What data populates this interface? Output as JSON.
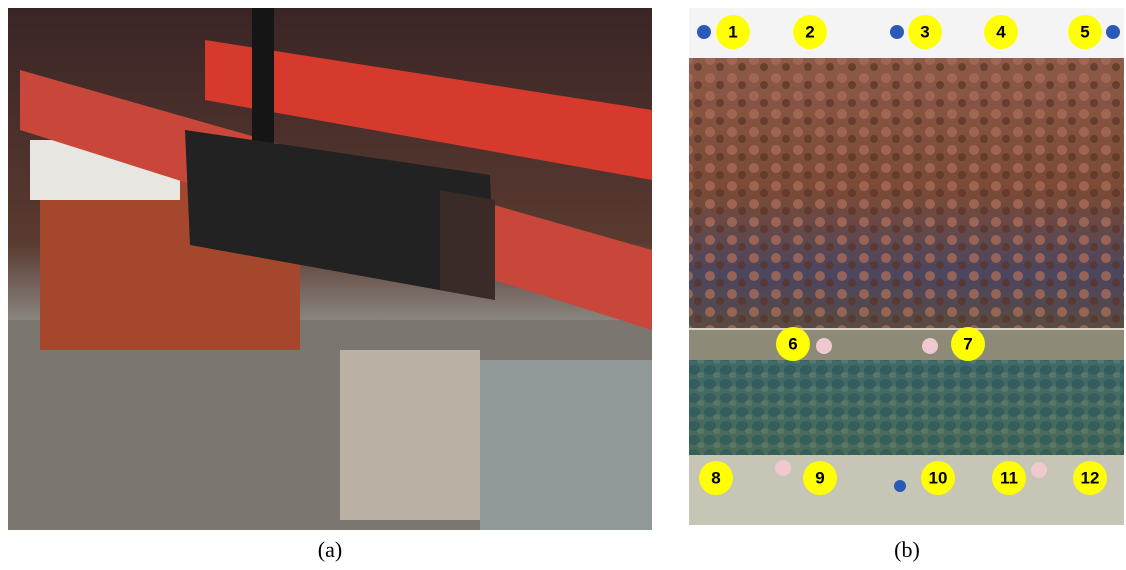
{
  "panels": [
    {
      "label": "(a)"
    },
    {
      "label": "(b)",
      "markers": [
        "1",
        "2",
        "3",
        "4",
        "5",
        "6",
        "7",
        "8",
        "9",
        "10",
        "11",
        "12"
      ]
    }
  ]
}
